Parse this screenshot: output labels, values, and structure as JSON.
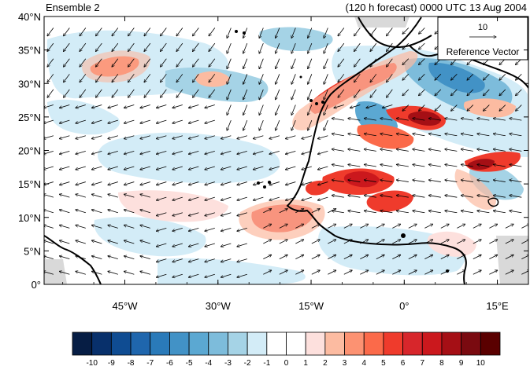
{
  "titles": {
    "left": "Ensemble 2",
    "right": "(120 h forecast) 0000 UTC 13 Aug 2004"
  },
  "map": {
    "lat_range": [
      0,
      40
    ],
    "lon_range": [
      -58,
      20
    ],
    "lat_ticks": [
      "0°",
      "5°N",
      "10°N",
      "15°N",
      "20°N",
      "25°N",
      "30°N",
      "35°N",
      "40°N"
    ],
    "lon_ticks": [
      "45°W",
      "30°W",
      "15°W",
      "0°",
      "15°E"
    ],
    "reference_vector": {
      "value": "10",
      "label": "Reference Vector"
    }
  },
  "colorbar": {
    "labels": [
      "-10",
      "-9",
      "-8",
      "-7",
      "-6",
      "-5",
      "-4",
      "-3",
      "-2",
      "-1",
      "0",
      "1",
      "2",
      "3",
      "4",
      "5",
      "6",
      "7",
      "8",
      "9",
      "10"
    ],
    "colors": [
      "#061d44",
      "#08306b",
      "#0f4c92",
      "#1f66ad",
      "#2a7ab9",
      "#4292c6",
      "#5ba8d2",
      "#7dbcdb",
      "#a5d3e6",
      "#d3ecf7",
      "#ffffff",
      "#ffffff",
      "#fde0dd",
      "#fcbba1",
      "#fc9272",
      "#fb6a4a",
      "#ef3b2c",
      "#d7262b",
      "#cb181d",
      "#a50f15",
      "#7a0a10",
      "#5a0000"
    ]
  }
}
